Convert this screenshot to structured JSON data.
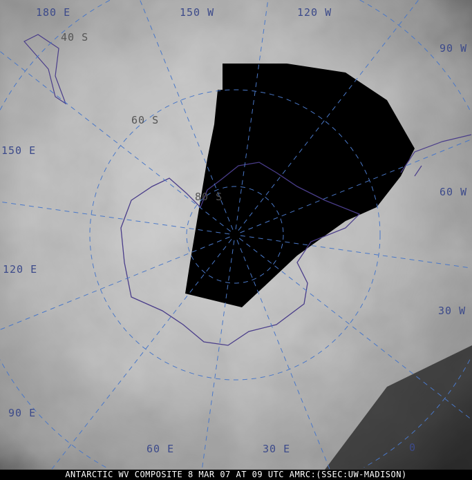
{
  "caption": "ANTARCTIC WV COMPOSITE 8 MAR 07 AT 09 UTC AMRC:(SSEC:UW-MADISON)",
  "longitude_labels": [
    "180 E",
    "150 W",
    "120 W",
    "90 W",
    "60 W",
    "30 W",
    "0",
    "30 E",
    "60 E",
    "90 E",
    "120 E",
    "150 E"
  ],
  "latitude_labels": [
    "40 S",
    "60 S",
    "80 S"
  ],
  "colors": {
    "grid": "#4a78c8",
    "coastline": "#4a3d8a",
    "label": "#3c4a8a",
    "no_data": "#000000"
  }
}
